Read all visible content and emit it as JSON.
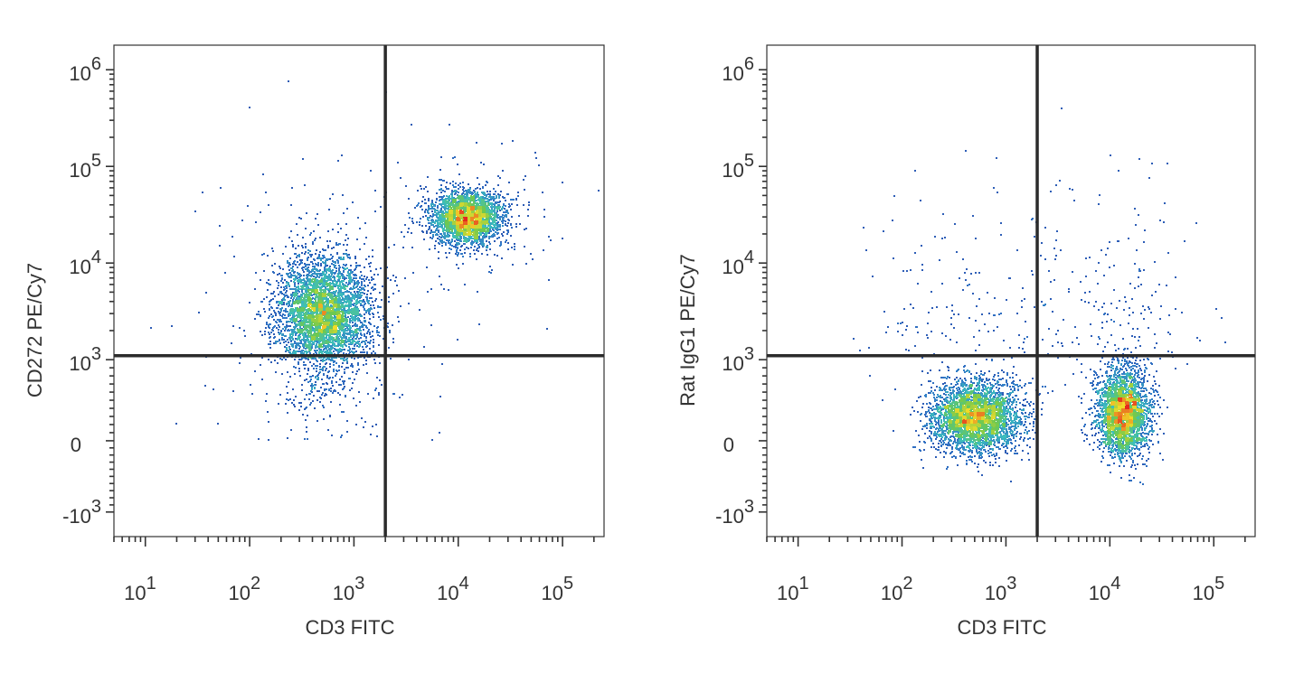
{
  "chart_data": [
    {
      "type": "scatter",
      "subtype": "flow-cytometry-density-dot-plot",
      "xlabel": "CD3 FITC",
      "ylabel": "CD272 PE/Cy7",
      "x_scale": "biexponential",
      "y_scale": "biexponential",
      "x_tick_labels": [
        {
          "base": "10",
          "exp": "1",
          "value": 10
        },
        {
          "base": "10",
          "exp": "2",
          "value": 100
        },
        {
          "base": "10",
          "exp": "3",
          "value": 1000
        },
        {
          "base": "10",
          "exp": "4",
          "value": 10000
        },
        {
          "base": "10",
          "exp": "5",
          "value": 100000
        }
      ],
      "y_tick_labels": [
        {
          "base": "-10",
          "exp": "3",
          "value": -1000
        },
        {
          "base": "0",
          "exp": "",
          "value": 0
        },
        {
          "base": "10",
          "exp": "3",
          "value": 1000
        },
        {
          "base": "10",
          "exp": "4",
          "value": 10000
        },
        {
          "base": "10",
          "exp": "5",
          "value": 100000
        },
        {
          "base": "10",
          "exp": "6",
          "value": 1000000
        }
      ],
      "xlim": [
        5,
        250000
      ],
      "ylim": [
        -2000,
        2000000
      ],
      "quadrant_gate": {
        "x": 2000,
        "y": 1100
      },
      "populations": [
        {
          "x_center": 500,
          "y_center": 3000,
          "x_spread_decades": 0.22,
          "y_spread_decades": 0.3,
          "count": 4200,
          "peak": "yellow"
        },
        {
          "x_center": 12000,
          "y_center": 30000,
          "x_spread_decades": 0.17,
          "y_spread_decades": 0.14,
          "count": 2600,
          "peak": "red"
        }
      ],
      "grid": false,
      "legend": "none"
    },
    {
      "type": "scatter",
      "subtype": "flow-cytometry-density-dot-plot",
      "xlabel": "CD3 FITC",
      "ylabel": "Rat IgG1 PE/Cy7",
      "x_scale": "biexponential",
      "y_scale": "biexponential",
      "x_tick_labels": [
        {
          "base": "10",
          "exp": "1",
          "value": 10
        },
        {
          "base": "10",
          "exp": "2",
          "value": 100
        },
        {
          "base": "10",
          "exp": "3",
          "value": 1000
        },
        {
          "base": "10",
          "exp": "4",
          "value": 10000
        },
        {
          "base": "10",
          "exp": "5",
          "value": 100000
        }
      ],
      "y_tick_labels": [
        {
          "base": "-10",
          "exp": "3",
          "value": -1000
        },
        {
          "base": "0",
          "exp": "",
          "value": 0
        },
        {
          "base": "10",
          "exp": "3",
          "value": 1000
        },
        {
          "base": "10",
          "exp": "4",
          "value": 10000
        },
        {
          "base": "10",
          "exp": "5",
          "value": 100000
        },
        {
          "base": "10",
          "exp": "6",
          "value": 1000000
        }
      ],
      "xlim": [
        5,
        250000
      ],
      "ylim": [
        -2000,
        2000000
      ],
      "quadrant_gate": {
        "x": 2000,
        "y": 1100
      },
      "populations": [
        {
          "x_center": 500,
          "y_center": 300,
          "x_spread_decades": 0.22,
          "y_spread_decades": 0.12,
          "count": 3300,
          "peak": "red"
        },
        {
          "x_center": 13000,
          "y_center": 350,
          "x_spread_decades": 0.13,
          "y_spread_decades": 0.13,
          "count": 2800,
          "peak": "red"
        }
      ],
      "grid": false,
      "legend": "none"
    }
  ]
}
